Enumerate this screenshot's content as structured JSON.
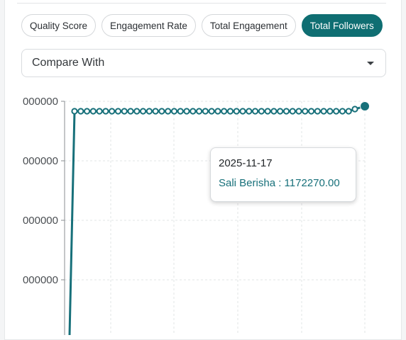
{
  "tabs": [
    {
      "label": "Quality Score",
      "active": false
    },
    {
      "label": "Engagement Rate",
      "active": false
    },
    {
      "label": "Total Engagement",
      "active": false
    },
    {
      "label": "Total Followers",
      "active": true
    }
  ],
  "compare": {
    "label": "Compare With",
    "icon": "chevron-down-icon"
  },
  "colors": {
    "accent": "#0f6e72",
    "line": "#17707a"
  },
  "tooltip": {
    "date": "2025-11-17",
    "series_name": "Sali Berisha",
    "value": "1172270.00",
    "text": "Sali Berisha : 1172270.00"
  },
  "chart_data": {
    "type": "line",
    "y_tick_labels": [
      "000000",
      "000000",
      "000000",
      "000000"
    ],
    "grid": true,
    "series": [
      {
        "name": "Sali Berisha",
        "point_count": 46,
        "last_value": 1172270.0
      }
    ]
  }
}
